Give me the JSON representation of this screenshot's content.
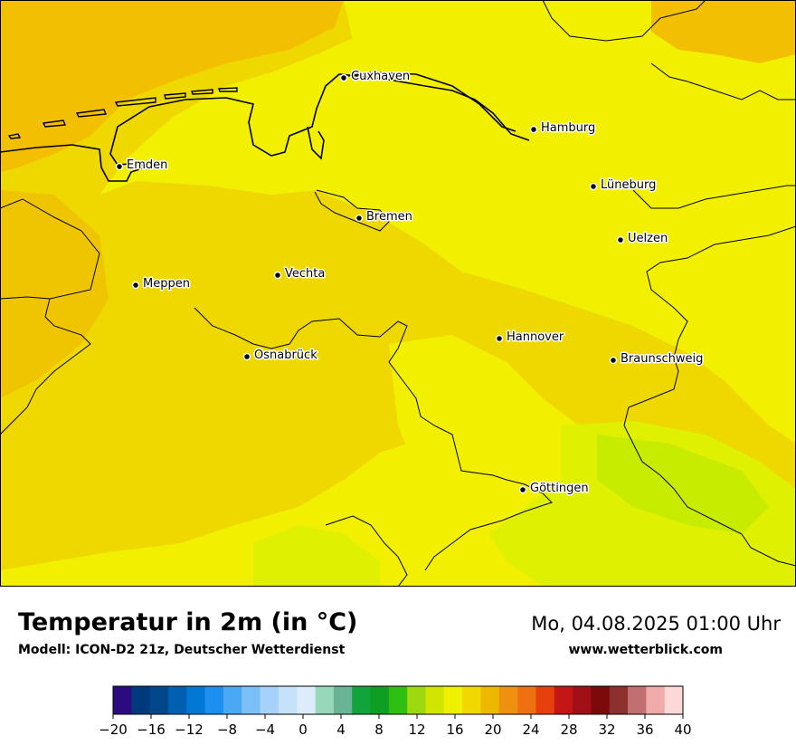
{
  "header": {
    "title": "Temperatur in 2m (in °C)",
    "subtitle": "Modell: ICON-D2 21z, Deutscher Wetterdienst",
    "datetime": "Mo, 04.08.2025 01:00 Uhr",
    "website": "www.wetterblick.com"
  },
  "map": {
    "variable": "2m temperature",
    "region": "Niedersachsen",
    "cities": [
      {
        "name": "Cuxhaven"
      },
      {
        "name": "Hamburg"
      },
      {
        "name": "Emden"
      },
      {
        "name": "Lüneburg"
      },
      {
        "name": "Bremen"
      },
      {
        "name": "Uelzen"
      },
      {
        "name": "Vechta"
      },
      {
        "name": "Meppen"
      },
      {
        "name": "Hannover"
      },
      {
        "name": "Osnabrück"
      },
      {
        "name": "Braunschweig"
      },
      {
        "name": "Göttingen"
      }
    ],
    "field_colors": {
      "t_12_14": "#c8ec00",
      "t_14_16": "#dff000",
      "t_16_18": "#f2f000",
      "t_18_20": "#efd800",
      "t_20_22": "#f2c000"
    }
  },
  "legend": {
    "ticks": [
      "−20",
      "−16",
      "−12",
      "−8",
      "−4",
      "0",
      "4",
      "8",
      "12",
      "16",
      "20",
      "24",
      "28",
      "32",
      "36",
      "40"
    ],
    "colors": [
      "#2c0b80",
      "#003a7d",
      "#00488a",
      "#005fb0",
      "#0078d4",
      "#1c8ff0",
      "#4ba8f5",
      "#7ac0f7",
      "#a6d2fa",
      "#c6e2fb",
      "#dcecfc",
      "#96d8b8",
      "#6ab496",
      "#12a43c",
      "#0e9e22",
      "#2fbe12",
      "#9ed80e",
      "#d0e600",
      "#eef000",
      "#f0d800",
      "#efb800",
      "#ef9010",
      "#ef7010",
      "#e8400c",
      "#c41616",
      "#a01016",
      "#7d0a0a",
      "#8c3030",
      "#c07070",
      "#f0aaaa",
      "#fcd8d8"
    ]
  }
}
